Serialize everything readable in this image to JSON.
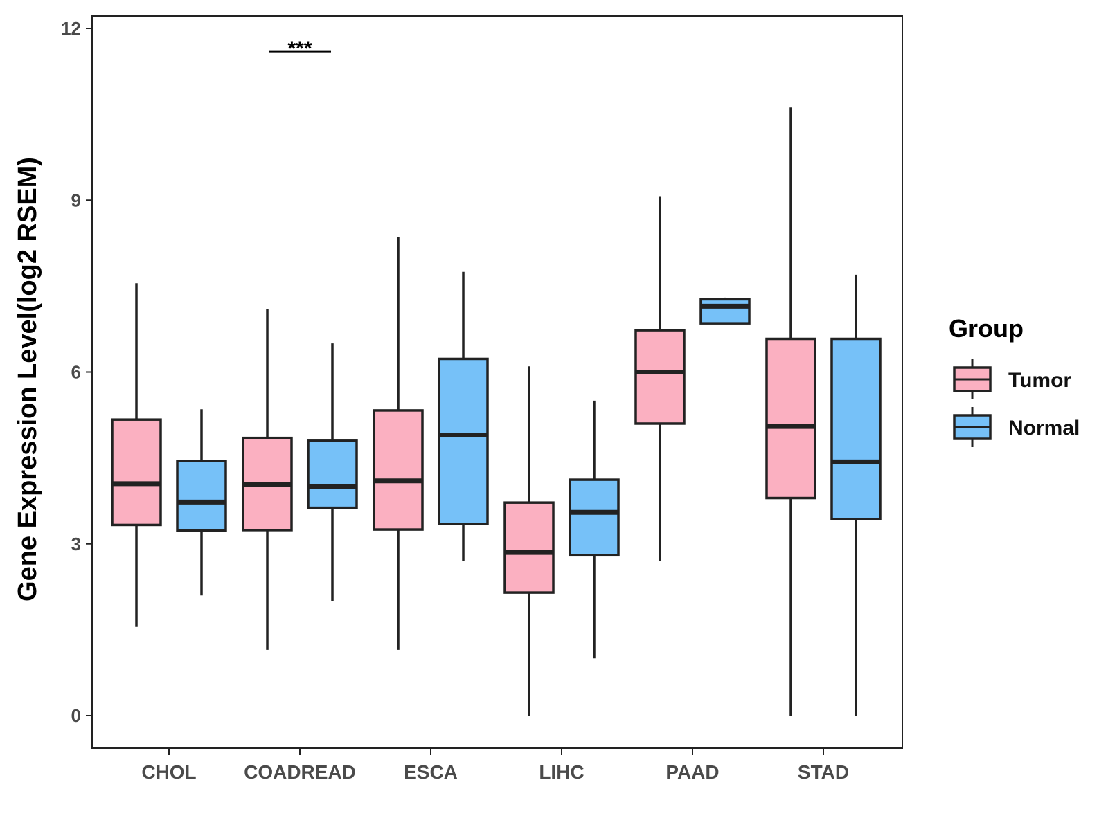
{
  "chart_data": {
    "type": "boxplot",
    "title": "",
    "xlabel": "",
    "ylabel": "Gene Expression Level(log2 RSEM)",
    "ylim": [
      -0.55,
      12.2
    ],
    "yticks": [
      0,
      3,
      6,
      9,
      12
    ],
    "categories": [
      "CHOL",
      "COADREAD",
      "ESCA",
      "LIHC",
      "PAAD",
      "STAD"
    ],
    "legend": {
      "title": "Group",
      "position": "right",
      "entries": [
        "Tumor",
        "Normal"
      ]
    },
    "colors": {
      "Tumor": "#fbb0c1",
      "Normal": "#76c1f8",
      "stroke": "#222222"
    },
    "series": [
      {
        "name": "Tumor",
        "boxes": [
          {
            "category": "CHOL",
            "whisker_low": 1.55,
            "q1": 3.33,
            "median": 4.05,
            "q3": 5.17,
            "whisker_high": 7.55
          },
          {
            "category": "COADREAD",
            "whisker_low": 1.15,
            "q1": 3.24,
            "median": 4.03,
            "q3": 4.85,
            "whisker_high": 7.1
          },
          {
            "category": "ESCA",
            "whisker_low": 1.15,
            "q1": 3.25,
            "median": 4.1,
            "q3": 5.33,
            "whisker_high": 8.35
          },
          {
            "category": "LIHC",
            "whisker_low": 0.0,
            "q1": 2.15,
            "median": 2.85,
            "q3": 3.72,
            "whisker_high": 6.1
          },
          {
            "category": "PAAD",
            "whisker_low": 2.7,
            "q1": 5.1,
            "median": 6.0,
            "q3": 6.73,
            "whisker_high": 9.07
          },
          {
            "category": "STAD",
            "whisker_low": 0.0,
            "q1": 3.8,
            "median": 5.05,
            "q3": 6.58,
            "whisker_high": 10.62
          }
        ]
      },
      {
        "name": "Normal",
        "boxes": [
          {
            "category": "CHOL",
            "whisker_low": 2.1,
            "q1": 3.23,
            "median": 3.73,
            "q3": 4.45,
            "whisker_high": 5.35
          },
          {
            "category": "COADREAD",
            "whisker_low": 2.0,
            "q1": 3.63,
            "median": 4.0,
            "q3": 4.8,
            "whisker_high": 6.5
          },
          {
            "category": "ESCA",
            "whisker_low": 2.7,
            "q1": 3.35,
            "median": 4.9,
            "q3": 6.23,
            "whisker_high": 7.75
          },
          {
            "category": "LIHC",
            "whisker_low": 1.0,
            "q1": 2.8,
            "median": 3.55,
            "q3": 4.12,
            "whisker_high": 5.5
          },
          {
            "category": "PAAD",
            "whisker_low": 6.85,
            "q1": 6.85,
            "median": 7.15,
            "q3": 7.27,
            "whisker_high": 7.3
          },
          {
            "category": "STAD",
            "whisker_low": 0.0,
            "q1": 3.43,
            "median": 4.43,
            "q3": 6.58,
            "whisker_high": 7.7
          }
        ]
      }
    ],
    "annotations": [
      {
        "category": "COADREAD",
        "text": "***",
        "y": 11.6
      }
    ]
  }
}
